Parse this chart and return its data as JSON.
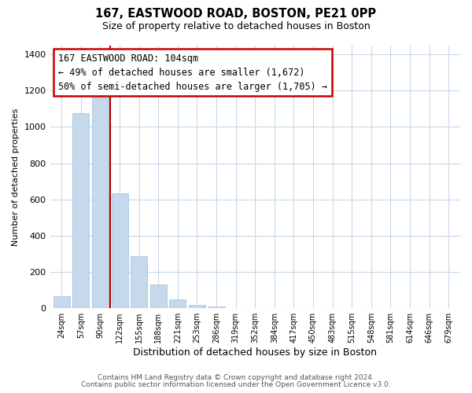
{
  "title": "167, EASTWOOD ROAD, BOSTON, PE21 0PP",
  "subtitle": "Size of property relative to detached houses in Boston",
  "xlabel": "Distribution of detached houses by size in Boston",
  "ylabel": "Number of detached properties",
  "bar_labels": [
    "24sqm",
    "57sqm",
    "90sqm",
    "122sqm",
    "155sqm",
    "188sqm",
    "221sqm",
    "253sqm",
    "286sqm",
    "319sqm",
    "352sqm",
    "384sqm",
    "417sqm",
    "450sqm",
    "483sqm",
    "515sqm",
    "548sqm",
    "581sqm",
    "614sqm",
    "646sqm",
    "679sqm"
  ],
  "bar_values": [
    65,
    1075,
    1160,
    635,
    285,
    130,
    47,
    20,
    10,
    0,
    0,
    0,
    0,
    0,
    0,
    0,
    0,
    0,
    0,
    0,
    0
  ],
  "bar_color": "#c6d9ec",
  "bar_edge_color": "#a8c4dc",
  "vline_color": "#aa0000",
  "annotation_line1": "167 EASTWOOD ROAD: 104sqm",
  "annotation_line2": "← 49% of detached houses are smaller (1,672)",
  "annotation_line3": "50% of semi-detached houses are larger (1,705) →",
  "annotation_box_color": "#ffffff",
  "annotation_box_edge": "#cc0000",
  "ylim": [
    0,
    1450
  ],
  "yticks": [
    0,
    200,
    400,
    600,
    800,
    1000,
    1200,
    1400
  ],
  "footer1": "Contains HM Land Registry data © Crown copyright and database right 2024.",
  "footer2": "Contains public sector information licensed under the Open Government Licence v3.0.",
  "bg_color": "#ffffff",
  "plot_bg_color": "#ffffff",
  "grid_color": "#c8d8e8"
}
